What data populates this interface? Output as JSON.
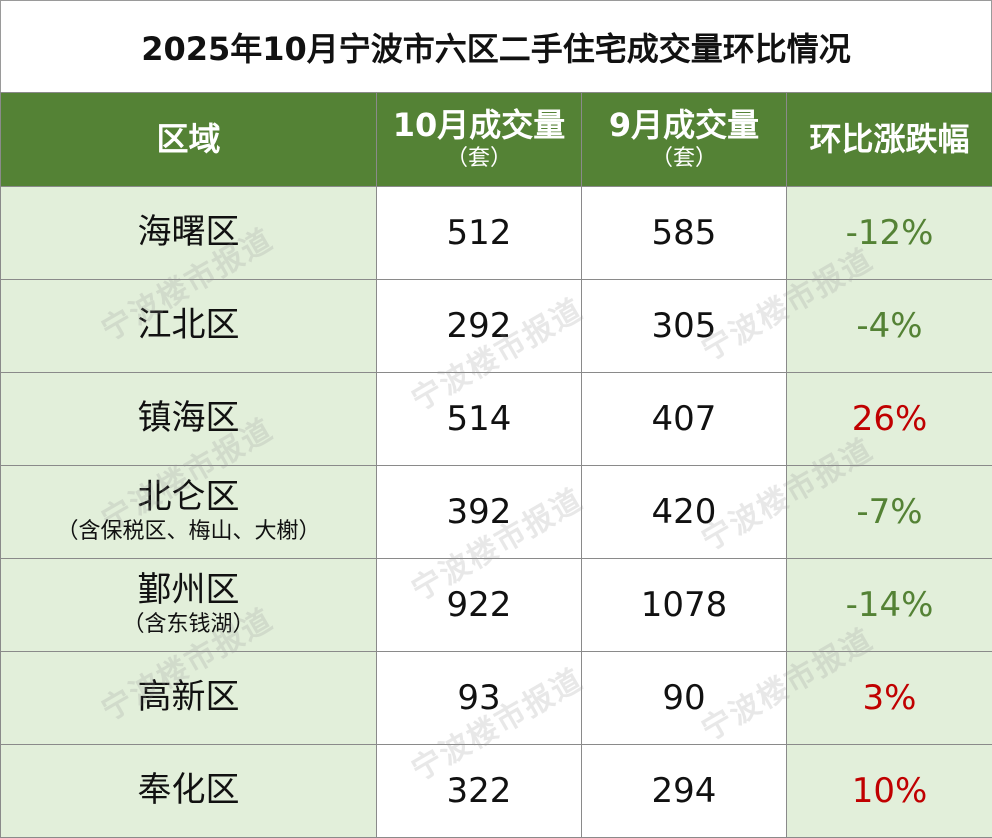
{
  "title": "2025年10月宁波市六区二手住宅成交量环比情况",
  "header": {
    "region": "区域",
    "oct": "10月成交量",
    "oct_unit": "（套）",
    "sep": "9月成交量",
    "sep_unit": "（套）",
    "change": "环比涨跌幅"
  },
  "rows": [
    {
      "name": "海曙区",
      "note": "",
      "oct": "512",
      "sep": "585",
      "change": "-12%",
      "trend": "down"
    },
    {
      "name": "江北区",
      "note": "",
      "oct": "292",
      "sep": "305",
      "change": "-4%",
      "trend": "down"
    },
    {
      "name": "镇海区",
      "note": "",
      "oct": "514",
      "sep": "407",
      "change": "26%",
      "trend": "up"
    },
    {
      "name": "北仑区",
      "note": "（含保税区、梅山、大榭）",
      "oct": "392",
      "sep": "420",
      "change": "-7%",
      "trend": "down"
    },
    {
      "name": "鄞州区",
      "note": "（含东钱湖）",
      "oct": "922",
      "sep": "1078",
      "change": "-14%",
      "trend": "down"
    },
    {
      "name": "高新区",
      "note": "",
      "oct": "93",
      "sep": "90",
      "change": "3%",
      "trend": "up"
    },
    {
      "name": "奉化区",
      "note": "",
      "oct": "322",
      "sep": "294",
      "change": "10%",
      "trend": "up"
    }
  ],
  "watermark": "宁波楼市报道",
  "colors": {
    "header_bg": "#548235",
    "side_bg": "#e2efda",
    "down": "#548235",
    "up": "#c00000"
  }
}
